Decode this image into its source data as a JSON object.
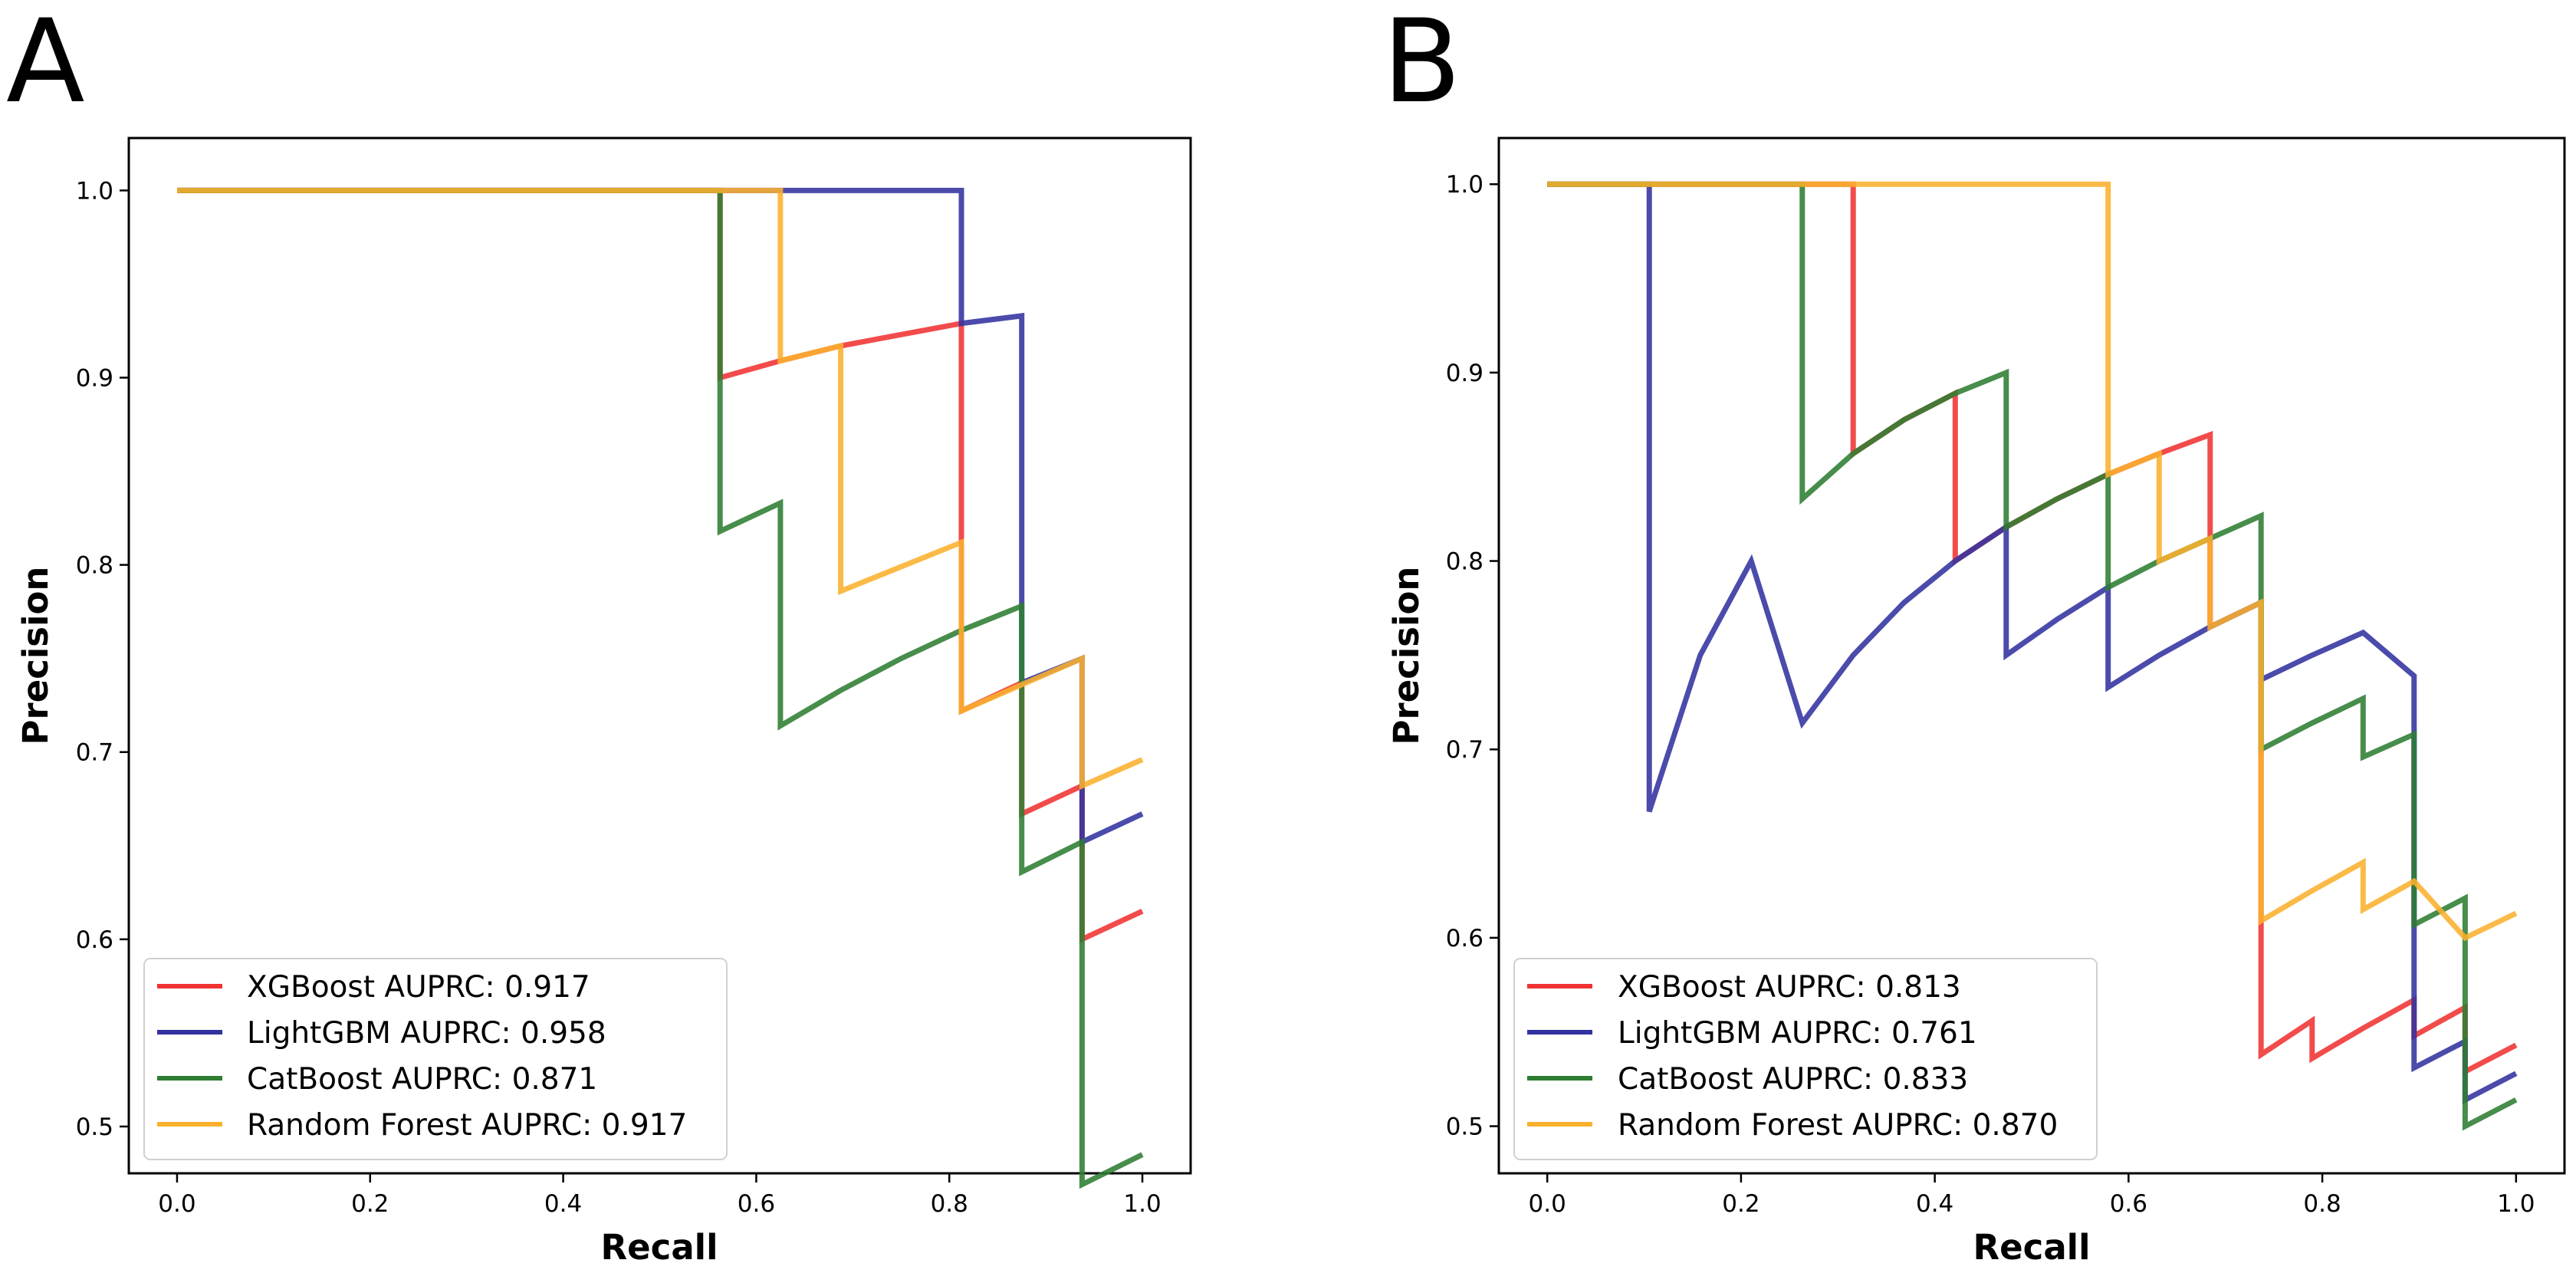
{
  "chart_data": [
    {
      "panel": "A",
      "type": "line",
      "title": "",
      "xlabel": "Recall",
      "ylabel": "Precision",
      "xlim": [
        -0.05,
        1.05
      ],
      "ylim": [
        0.475,
        1.028
      ],
      "xticks": [
        0.0,
        0.2,
        0.4,
        0.6,
        0.8,
        1.0
      ],
      "xtick_labels": [
        "0.0",
        "0.2",
        "0.4",
        "0.6",
        "0.8",
        "1.0"
      ],
      "yticks": [
        0.5,
        0.6,
        0.7,
        0.8,
        0.9,
        1.0
      ],
      "ytick_labels": [
        "0.5",
        "0.6",
        "0.7",
        "0.8",
        "0.9",
        "1.0"
      ],
      "legend_position": "lower-left",
      "series": [
        {
          "name": "XGBoost",
          "legend_label": "XGBoost AUPRC: 0.917",
          "color": "#f03232",
          "x": [
            0.0,
            0.5625,
            0.5625,
            0.625,
            0.6875,
            0.75,
            0.8125,
            0.8125,
            0.875,
            0.875,
            0.9375,
            0.9375,
            1.0
          ],
          "y": [
            1.0,
            1.0,
            0.9,
            0.909,
            0.917,
            0.923,
            0.929,
            0.722,
            0.737,
            0.667,
            0.682,
            0.6,
            0.615
          ]
        },
        {
          "name": "LightGBM",
          "legend_label": "LightGBM AUPRC: 0.958",
          "color": "#3232a0",
          "x": [
            0.0,
            0.8125,
            0.8125,
            0.875,
            0.875,
            0.9375,
            0.9375,
            1.0
          ],
          "y": [
            1.0,
            1.0,
            0.929,
            0.933,
            0.737,
            0.75,
            0.652,
            0.667
          ]
        },
        {
          "name": "CatBoost",
          "legend_label": "CatBoost AUPRC: 0.871",
          "color": "#2e7d32",
          "x": [
            0.0,
            0.5625,
            0.5625,
            0.625,
            0.625,
            0.6875,
            0.75,
            0.8125,
            0.875,
            0.875,
            0.9375,
            0.9375,
            1.0
          ],
          "y": [
            1.0,
            1.0,
            0.818,
            0.833,
            0.714,
            0.733,
            0.75,
            0.765,
            0.778,
            0.636,
            0.652,
            0.469,
            0.485
          ]
        },
        {
          "name": "Random Forest",
          "legend_label": "Random Forest AUPRC: 0.917",
          "color": "#fbb02d",
          "x": [
            0.0,
            0.625,
            0.625,
            0.6875,
            0.6875,
            0.8125,
            0.8125,
            0.9375,
            0.9375,
            1.0
          ],
          "y": [
            1.0,
            1.0,
            0.909,
            0.917,
            0.786,
            0.812,
            0.722,
            0.75,
            0.682,
            0.696
          ]
        }
      ]
    },
    {
      "panel": "B",
      "type": "line",
      "title": "",
      "xlabel": "Recall",
      "ylabel": "Precision",
      "xlim": [
        -0.05,
        1.05
      ],
      "ylim": [
        0.475,
        1.0245
      ],
      "xticks": [
        0.0,
        0.2,
        0.4,
        0.6,
        0.8,
        1.0
      ],
      "xtick_labels": [
        "0.0",
        "0.2",
        "0.4",
        "0.6",
        "0.8",
        "1.0"
      ],
      "yticks": [
        0.5,
        0.6,
        0.7,
        0.8,
        0.9,
        1.0
      ],
      "ytick_labels": [
        "0.5",
        "0.6",
        "0.7",
        "0.8",
        "0.9",
        "1.0"
      ],
      "legend_position": "lower-left",
      "series": [
        {
          "name": "XGBoost",
          "legend_label": "XGBoost AUPRC: 0.813",
          "color": "#f03232",
          "x": [
            0.0,
            0.3158,
            0.3158,
            0.3684,
            0.4211,
            0.4211,
            0.4737,
            0.5263,
            0.5789,
            0.6316,
            0.6842,
            0.6842,
            0.7368,
            0.7368,
            0.7895,
            0.7895,
            0.8421,
            0.8947,
            0.8947,
            0.9474,
            0.9474,
            1.0
          ],
          "y": [
            1.0,
            1.0,
            0.857,
            0.875,
            0.889,
            0.8,
            0.818,
            0.833,
            0.846,
            0.857,
            0.867,
            0.765,
            0.778,
            0.538,
            0.556,
            0.536,
            0.552,
            0.567,
            0.548,
            0.563,
            0.529,
            0.543
          ]
        },
        {
          "name": "LightGBM",
          "legend_label": "LightGBM AUPRC: 0.761",
          "color": "#3232a0",
          "x": [
            0.0,
            0.1053,
            0.1053,
            0.1579,
            0.2105,
            0.2632,
            0.3158,
            0.3684,
            0.4211,
            0.4737,
            0.4737,
            0.5263,
            0.5789,
            0.5789,
            0.6316,
            0.6842,
            0.7368,
            0.7368,
            0.7895,
            0.8421,
            0.8947,
            0.8947,
            0.9474,
            0.9474,
            1.0
          ],
          "y": [
            1.0,
            1.0,
            0.667,
            0.75,
            0.8,
            0.714,
            0.75,
            0.778,
            0.8,
            0.818,
            0.75,
            0.769,
            0.786,
            0.733,
            0.75,
            0.765,
            0.778,
            0.737,
            0.75,
            0.762,
            0.739,
            0.531,
            0.545,
            0.514,
            0.528
          ]
        },
        {
          "name": "CatBoost",
          "legend_label": "CatBoost AUPRC: 0.833",
          "color": "#2e7d32",
          "x": [
            0.0,
            0.2632,
            0.2632,
            0.3158,
            0.3684,
            0.4211,
            0.4737,
            0.4737,
            0.5263,
            0.5789,
            0.5789,
            0.6316,
            0.6842,
            0.7368,
            0.7368,
            0.7895,
            0.8421,
            0.8421,
            0.8947,
            0.8947,
            0.9474,
            0.9474,
            1.0
          ],
          "y": [
            1.0,
            1.0,
            0.833,
            0.857,
            0.875,
            0.889,
            0.9,
            0.818,
            0.833,
            0.846,
            0.786,
            0.8,
            0.812,
            0.824,
            0.7,
            0.714,
            0.727,
            0.696,
            0.708,
            0.607,
            0.621,
            0.5,
            0.514
          ]
        },
        {
          "name": "Random Forest",
          "legend_label": "Random Forest AUPRC: 0.870",
          "color": "#fbb02d",
          "x": [
            0.0,
            0.5789,
            0.5789,
            0.6316,
            0.6316,
            0.6842,
            0.6842,
            0.7368,
            0.7368,
            0.7895,
            0.8421,
            0.8421,
            0.8947,
            0.9474,
            1.0
          ],
          "y": [
            1.0,
            1.0,
            0.846,
            0.857,
            0.8,
            0.812,
            0.765,
            0.778,
            0.609,
            0.625,
            0.64,
            0.615,
            0.63,
            0.6,
            0.613
          ]
        }
      ]
    }
  ]
}
